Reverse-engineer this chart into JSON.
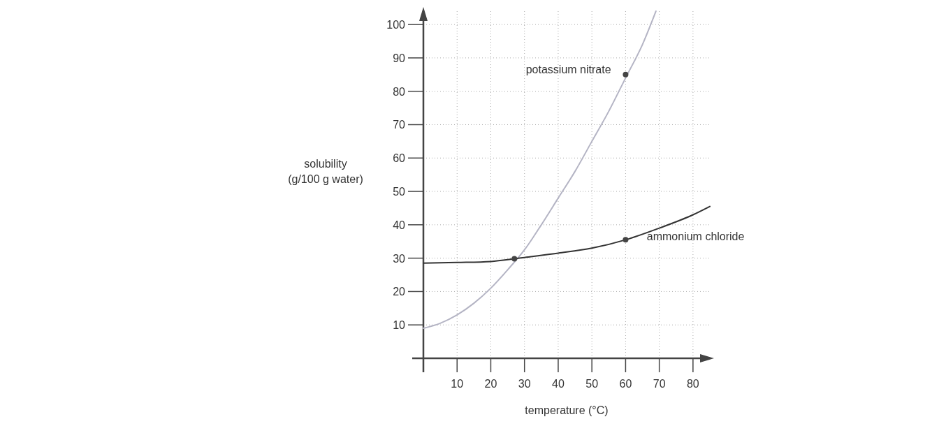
{
  "chart_data": {
    "type": "line",
    "xlabel": "temperature (°C)",
    "ylabel": "solubility (g/100 g water)",
    "xlim": [
      0,
      85
    ],
    "ylim": [
      0,
      104
    ],
    "xticks": [
      {
        "value": 0,
        "label": null
      },
      10,
      20,
      30,
      40,
      50,
      60,
      70,
      80
    ],
    "yticks": [
      10,
      20,
      30,
      40,
      50,
      60,
      70,
      80,
      90,
      100
    ],
    "grid": true,
    "marker": "none",
    "line_style": "solid",
    "series": [
      {
        "name": "potassium nitrate",
        "color": "#b4b4c4",
        "x": [
          0,
          5,
          10,
          15,
          20,
          25,
          30,
          35,
          40,
          45,
          50,
          55,
          60,
          65,
          69
        ],
        "values": [
          9,
          10.5,
          13,
          16.5,
          21,
          26.5,
          32.5,
          40,
          48,
          56,
          65,
          74,
          84,
          94,
          104
        ]
      },
      {
        "name": "ammonium chloride",
        "color": "#333333",
        "x": [
          0,
          10,
          20,
          27,
          30,
          40,
          50,
          60,
          70,
          80,
          85
        ],
        "values": [
          28.5,
          28.7,
          29,
          29.8,
          30.2,
          31.5,
          33,
          35.5,
          39,
          43,
          45.5
        ]
      },
      {
        "type": "scatter",
        "color": "#444444",
        "marker": "circle",
        "x": [
          27,
          60,
          60
        ],
        "values": [
          29.8,
          35.5,
          85
        ]
      }
    ]
  }
}
